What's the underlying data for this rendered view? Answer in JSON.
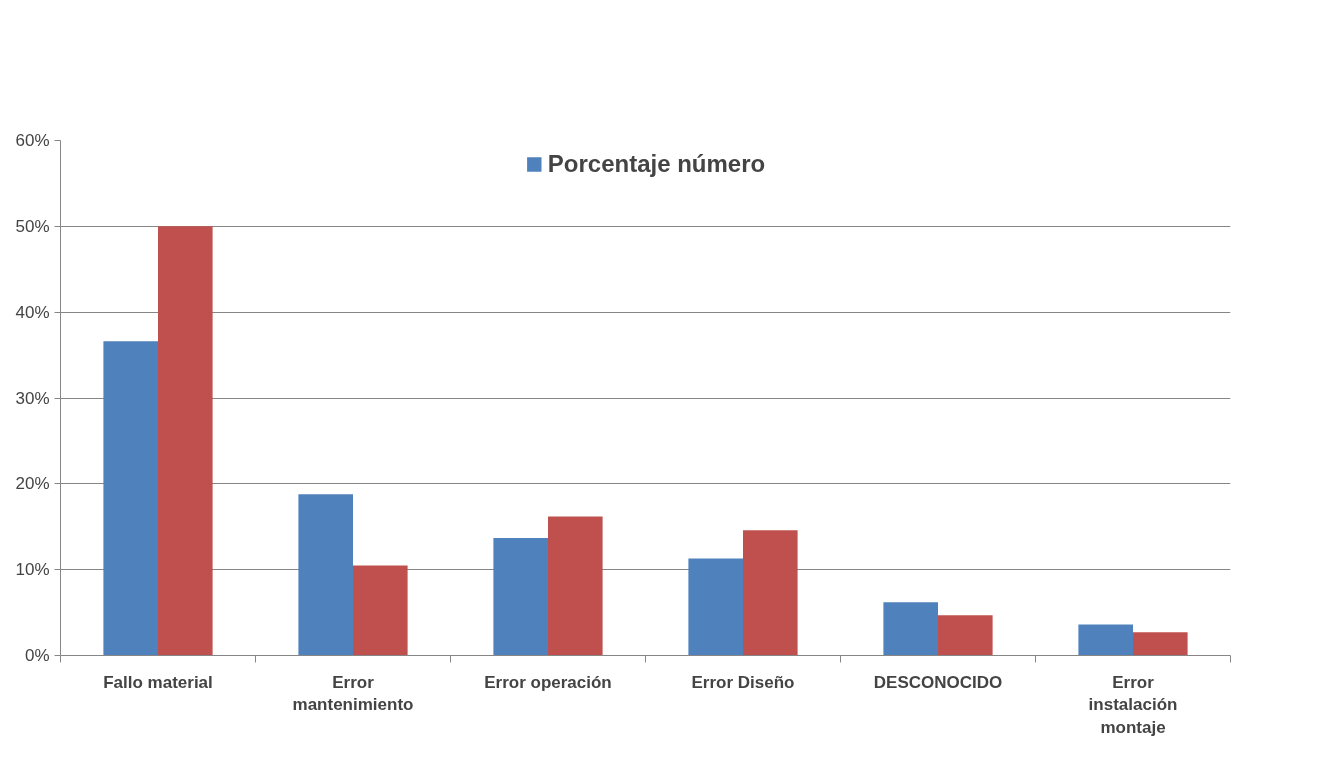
{
  "chart_data": {
    "type": "bar",
    "categories": [
      "Fallo material",
      "Error\nmantenimiento",
      "Error operación",
      "Error Diseño",
      "DESCONOCIDO",
      "Error\ninstalación\nmontaje"
    ],
    "series": [
      {
        "name": "Porcentaje número",
        "color": "#4f81bd",
        "values": [
          36.6,
          18.8,
          13.7,
          11.3,
          6.2,
          3.6
        ]
      },
      {
        "color": "#c0504d",
        "values": [
          50,
          10.5,
          16.2,
          14.6,
          4.7,
          2.7
        ]
      }
    ],
    "ylim": [
      0,
      60
    ],
    "yticks": [
      {
        "value": 0,
        "label": "0%"
      },
      {
        "value": 10,
        "label": "10%"
      },
      {
        "value": 20,
        "label": "20%"
      },
      {
        "value": 30,
        "label": "30%"
      },
      {
        "value": 40,
        "label": "40%"
      },
      {
        "value": 50,
        "label": "50%"
      },
      {
        "value": 60,
        "label": "60%"
      }
    ],
    "grid": "y",
    "legend": "top"
  }
}
